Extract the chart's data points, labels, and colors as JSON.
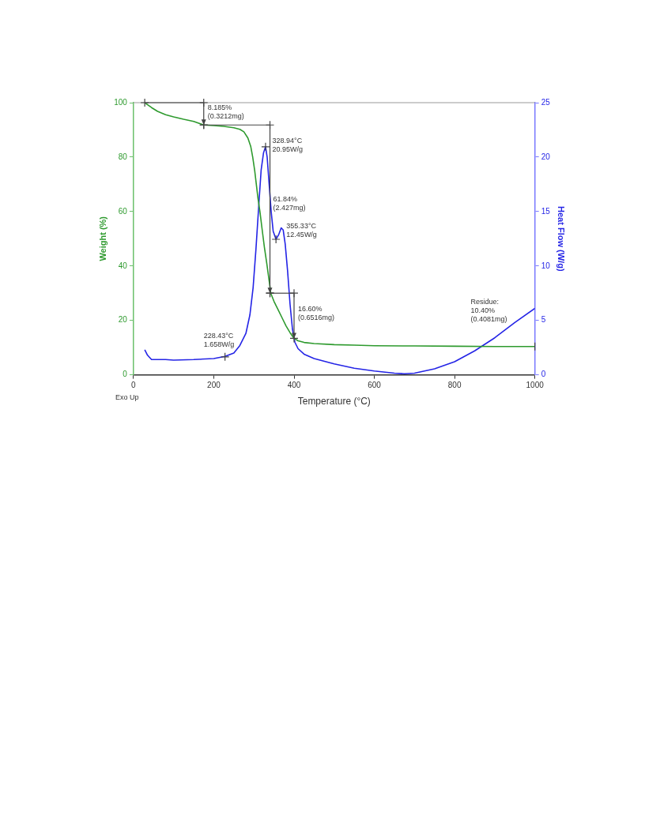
{
  "chart_data": {
    "type": "line",
    "xlabel": "Temperature (°C)",
    "ylabel": "Weight (%)",
    "y2label": "Heat Flow (W/g)",
    "xlim": [
      0,
      1000
    ],
    "xticks": [
      0,
      200,
      400,
      600,
      800,
      1000
    ],
    "ylim": [
      0,
      100
    ],
    "yticks": [
      0,
      20,
      40,
      60,
      80,
      100
    ],
    "y2lim": [
      0,
      25
    ],
    "y2ticks": [
      0,
      5,
      10,
      15,
      20,
      25
    ],
    "grid": false,
    "legend": false,
    "marker": "none",
    "line_style": "solid",
    "series": [
      {
        "color": "#2e9a2e",
        "x": [
          28,
          45,
          60,
          80,
          100,
          125,
          150,
          175,
          200,
          225,
          250,
          265,
          275,
          285,
          292,
          297,
          302,
          306,
          310,
          315,
          320,
          326,
          332,
          338,
          342,
          350,
          360,
          370,
          380,
          390,
          400,
          410,
          425,
          450,
          500,
          550,
          600,
          700,
          800,
          900,
          1000
        ],
        "values": [
          100,
          98.2,
          96.8,
          95.6,
          94.8,
          93.9,
          93.1,
          91.8,
          91.6,
          91.3,
          90.8,
          90.2,
          89.3,
          87,
          84,
          80,
          75,
          70,
          65,
          60,
          54,
          47,
          41,
          34.5,
          30,
          27,
          24,
          21,
          18,
          15.5,
          13.4,
          12.5,
          11.9,
          11.5,
          11.1,
          10.9,
          10.7,
          10.6,
          10.5,
          10.4,
          10.4
        ]
      },
      {
        "color": "#2424e6",
        "axis": "y2",
        "x": [
          28,
          35,
          45,
          60,
          80,
          100,
          150,
          200,
          228,
          250,
          265,
          280,
          290,
          298,
          305,
          312,
          318,
          324,
          329,
          333,
          338,
          343,
          348,
          355,
          362,
          368,
          373,
          378,
          384,
          390,
          396,
          402,
          410,
          425,
          450,
          500,
          550,
          600,
          650,
          675,
          700,
          750,
          800,
          850,
          900,
          950,
          1000
        ],
        "values": [
          2.3,
          1.8,
          1.4,
          1.4,
          1.4,
          1.35,
          1.4,
          1.5,
          1.7,
          2.0,
          2.7,
          3.8,
          5.5,
          8,
          11.5,
          15.5,
          18.8,
          20.4,
          20.95,
          20,
          17.5,
          15,
          13.2,
          12.45,
          12.9,
          13.5,
          13.3,
          12,
          9.5,
          6.5,
          4.2,
          3.0,
          2.4,
          1.9,
          1.5,
          1.0,
          0.6,
          0.35,
          0.15,
          0.1,
          0.15,
          0.55,
          1.2,
          2.2,
          3.4,
          4.8,
          6.1
        ]
      }
    ],
    "annotations": [
      {
        "text": "8.185%\n(0.3212mg)",
        "x": 175,
        "y": 91.8
      },
      {
        "text": "61.84%\n(2.427mg)",
        "x": 340,
        "y": 61
      },
      {
        "text": "16.60%\n(0.6516mg)",
        "x": 400,
        "y": 22
      },
      "Residue:\n10.40%\n(0.4081mg)",
      "328.94°C\n20.95W/g",
      "355.33°C\n12.45W/g",
      "228.43°C\n1.658W/g",
      "Exo Up"
    ]
  }
}
